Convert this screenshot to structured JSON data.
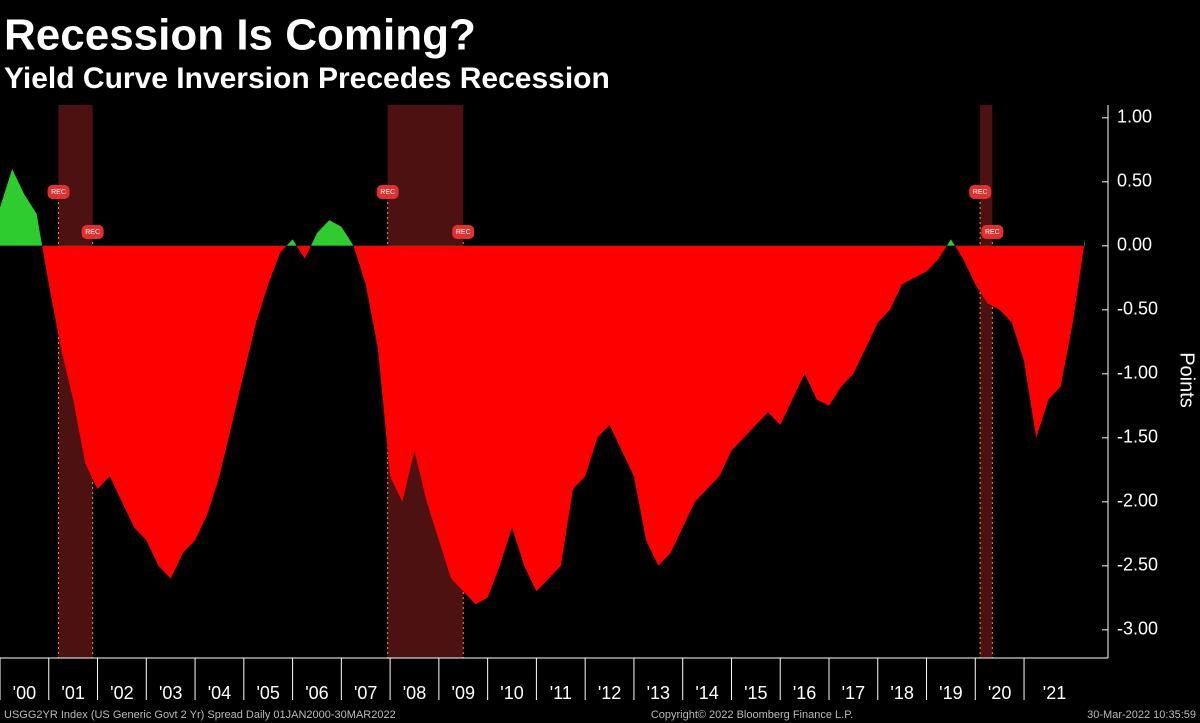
{
  "chart_data": {
    "type": "area",
    "title": "Recession Is Coming?",
    "subtitle": "Yield Curve Inversion Precedes Recession",
    "y_label": "Points",
    "footer_left": "USGG2YR Index (US Generic Govt 2 Yr) Spread  Daily 01JAN2000-30MAR2022",
    "footer_center": "Copyright© 2022 Bloomberg Finance L.P.",
    "footer_right": "30-Mar-2022 10:35:59",
    "colors": {
      "positive": "#2ecc2e",
      "negative": "#ff0000",
      "recession": "#5a1414"
    },
    "recession_label": "REC",
    "recessions": [
      [
        2001.2,
        2001.9
      ],
      [
        2007.95,
        2009.5
      ],
      [
        2020.1,
        2020.35
      ]
    ],
    "x": [
      2000,
      2000.25,
      2000.5,
      2000.75,
      2001,
      2001.25,
      2001.5,
      2001.75,
      2002,
      2002.25,
      2002.5,
      2002.75,
      2003,
      2003.25,
      2003.5,
      2003.75,
      2004,
      2004.25,
      2004.5,
      2004.75,
      2005,
      2005.25,
      2005.5,
      2005.75,
      2006,
      2006.25,
      2006.5,
      2006.75,
      2007,
      2007.25,
      2007.5,
      2007.75,
      2008,
      2008.25,
      2008.5,
      2008.75,
      2009,
      2009.25,
      2009.5,
      2009.75,
      2010,
      2010.25,
      2010.5,
      2010.75,
      2011,
      2011.25,
      2011.5,
      2011.75,
      2012,
      2012.25,
      2012.5,
      2012.75,
      2013,
      2013.25,
      2013.5,
      2013.75,
      2014,
      2014.25,
      2014.5,
      2014.75,
      2015,
      2015.25,
      2015.5,
      2015.75,
      2016,
      2016.25,
      2016.5,
      2016.75,
      2017,
      2017.25,
      2017.5,
      2017.75,
      2018,
      2018.25,
      2018.5,
      2018.75,
      2019,
      2019.25,
      2019.5,
      2019.75,
      2020,
      2020.25,
      2020.5,
      2020.75,
      2021,
      2021.25,
      2021.5,
      2021.75,
      2022,
      2022.25
    ],
    "values": [
      0.3,
      0.6,
      0.4,
      0.25,
      -0.3,
      -0.8,
      -1.2,
      -1.7,
      -1.9,
      -1.8,
      -2.0,
      -2.2,
      -2.3,
      -2.5,
      -2.6,
      -2.4,
      -2.3,
      -2.1,
      -1.8,
      -1.4,
      -1.0,
      -0.6,
      -0.3,
      -0.05,
      0.05,
      -0.1,
      0.1,
      0.2,
      0.15,
      0.0,
      -0.3,
      -0.8,
      -1.8,
      -2.0,
      -1.6,
      -2.0,
      -2.3,
      -2.6,
      -2.7,
      -2.8,
      -2.75,
      -2.5,
      -2.2,
      -2.5,
      -2.7,
      -2.6,
      -2.5,
      -1.9,
      -1.8,
      -1.5,
      -1.4,
      -1.6,
      -1.8,
      -2.3,
      -2.5,
      -2.4,
      -2.2,
      -2.0,
      -1.9,
      -1.8,
      -1.6,
      -1.5,
      -1.4,
      -1.3,
      -1.4,
      -1.2,
      -1.0,
      -1.2,
      -1.25,
      -1.1,
      -1.0,
      -0.8,
      -0.6,
      -0.5,
      -0.3,
      -0.25,
      -0.2,
      -0.1,
      0.05,
      -0.1,
      -0.3,
      -0.45,
      -0.5,
      -0.6,
      -0.9,
      -1.5,
      -1.2,
      -1.1,
      -0.6,
      0.05
    ],
    "xlim": [
      2000,
      2022.25
    ],
    "xticks": [
      {
        "value": 2000,
        "label": "'00"
      },
      {
        "value": 2001,
        "label": "'01"
      },
      {
        "value": 2002,
        "label": "'02"
      },
      {
        "value": 2003,
        "label": "'03"
      },
      {
        "value": 2004,
        "label": "'04"
      },
      {
        "value": 2005,
        "label": "'05"
      },
      {
        "value": 2006,
        "label": "'06"
      },
      {
        "value": 2007,
        "label": "'07"
      },
      {
        "value": 2008,
        "label": "'08"
      },
      {
        "value": 2009,
        "label": "'09"
      },
      {
        "value": 2010,
        "label": "'10"
      },
      {
        "value": 2011,
        "label": "'11"
      },
      {
        "value": 2012,
        "label": "'12"
      },
      {
        "value": 2013,
        "label": "'13"
      },
      {
        "value": 2014,
        "label": "'14"
      },
      {
        "value": 2015,
        "label": "'15"
      },
      {
        "value": 2016,
        "label": "'16"
      },
      {
        "value": 2017,
        "label": "'17"
      },
      {
        "value": 2018,
        "label": "'18"
      },
      {
        "value": 2019,
        "label": "'19"
      },
      {
        "value": 2020,
        "label": "'20"
      },
      {
        "value": 2021,
        "label": "'21"
      }
    ],
    "ylim": [
      -3.22,
      1.1
    ],
    "yticks": [
      {
        "value": 1,
        "label": "1.00"
      },
      {
        "value": 0.5,
        "label": "0.50"
      },
      {
        "value": 0,
        "label": "0.00"
      },
      {
        "value": -0.5,
        "label": "-0.50"
      },
      {
        "value": -1,
        "label": "-1.00"
      },
      {
        "value": -1.5,
        "label": "-1.50"
      },
      {
        "value": -2,
        "label": "-2.00"
      },
      {
        "value": -2.5,
        "label": "-2.50"
      },
      {
        "value": -3,
        "label": "-3.00"
      }
    ]
  }
}
